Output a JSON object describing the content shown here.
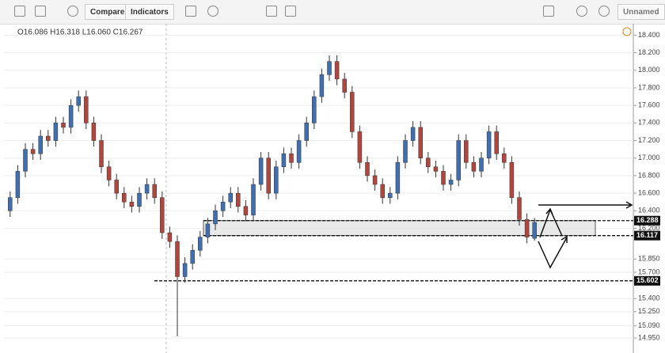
{
  "toolbar": {
    "compare": "Compare",
    "indicators": "Indicators",
    "layout_name": "Unnamed"
  },
  "chart_data": {
    "type": "candlestick",
    "ohlc_header": "O16.086 H16.318 L16.060 C16.267",
    "up_color": "#3f6fb0",
    "down_color": "#b0463e",
    "open": [
      16.4,
      16.55,
      16.85,
      17.1,
      17.05,
      17.25,
      17.2,
      17.4,
      17.35,
      17.6,
      17.7,
      17.4,
      17.2,
      16.9,
      16.75,
      16.6,
      16.5,
      16.45,
      16.6,
      16.7,
      16.55,
      16.15,
      16.05,
      15.65,
      15.8,
      15.95,
      16.1,
      16.25,
      16.4,
      16.5,
      16.6,
      16.45,
      16.35,
      16.7,
      17.0,
      16.6,
      16.9,
      17.05,
      16.95,
      17.2,
      17.4,
      17.7,
      17.95,
      18.1,
      17.9,
      17.75,
      17.3,
      16.95,
      16.8,
      16.7,
      16.55,
      16.6,
      16.95,
      17.2,
      17.35,
      17.0,
      16.9,
      16.85,
      16.7,
      16.75,
      17.2,
      16.95,
      16.85,
      17.0,
      17.3,
      17.05,
      16.95,
      16.55,
      16.3,
      16.086
    ],
    "high": [
      16.62,
      16.92,
      17.17,
      17.17,
      17.32,
      17.32,
      17.47,
      17.47,
      17.67,
      17.77,
      17.77,
      17.47,
      17.27,
      16.97,
      16.82,
      16.67,
      16.57,
      16.67,
      16.77,
      16.77,
      16.62,
      16.22,
      16.12,
      15.87,
      16.02,
      16.17,
      16.32,
      16.47,
      16.57,
      16.67,
      16.67,
      16.52,
      16.77,
      17.07,
      17.07,
      16.97,
      17.12,
      17.12,
      17.27,
      17.47,
      17.77,
      18.02,
      18.17,
      18.17,
      17.97,
      17.82,
      17.37,
      17.02,
      16.87,
      16.77,
      16.67,
      17.02,
      17.27,
      17.42,
      17.42,
      17.07,
      16.97,
      16.92,
      16.82,
      17.27,
      17.27,
      17.02,
      17.07,
      17.37,
      17.37,
      17.12,
      17.02,
      16.62,
      16.37,
      16.318
    ],
    "low": [
      16.33,
      16.48,
      16.78,
      16.98,
      16.98,
      17.13,
      17.13,
      17.28,
      17.28,
      17.53,
      17.33,
      17.13,
      16.83,
      16.68,
      16.53,
      16.43,
      16.38,
      16.38,
      16.53,
      16.48,
      16.08,
      15.98,
      14.97,
      15.58,
      15.73,
      15.88,
      16.03,
      16.18,
      16.33,
      16.43,
      16.38,
      16.28,
      16.28,
      16.63,
      16.53,
      16.53,
      16.83,
      16.88,
      16.88,
      17.13,
      17.33,
      17.63,
      17.88,
      17.83,
      17.68,
      17.23,
      16.88,
      16.73,
      16.63,
      16.48,
      16.48,
      16.53,
      16.88,
      17.13,
      16.93,
      16.83,
      16.78,
      16.63,
      16.63,
      16.68,
      16.88,
      16.78,
      16.78,
      16.93,
      16.98,
      16.88,
      16.48,
      16.23,
      16.03,
      16.06
    ],
    "close": [
      16.55,
      16.85,
      17.1,
      17.05,
      17.25,
      17.2,
      17.4,
      17.35,
      17.6,
      17.7,
      17.4,
      17.2,
      16.9,
      16.75,
      16.6,
      16.5,
      16.45,
      16.6,
      16.7,
      16.55,
      16.15,
      16.05,
      15.65,
      15.8,
      15.95,
      16.1,
      16.25,
      16.4,
      16.5,
      16.6,
      16.45,
      16.35,
      16.7,
      17.0,
      16.6,
      16.9,
      17.05,
      16.95,
      17.2,
      17.4,
      17.7,
      17.95,
      18.1,
      17.9,
      17.75,
      17.3,
      16.95,
      16.8,
      16.7,
      16.55,
      16.6,
      16.95,
      17.2,
      17.35,
      17.0,
      16.9,
      16.85,
      16.7,
      16.75,
      17.2,
      16.95,
      16.85,
      17.0,
      17.3,
      17.05,
      16.95,
      16.55,
      16.3,
      16.1,
      16.267
    ],
    "ylim": [
      14.78,
      18.53
    ],
    "yticks": [
      {
        "value": 18.4,
        "label": "18.400"
      },
      {
        "value": 18.2,
        "label": "18.200"
      },
      {
        "value": 18.0,
        "label": "18.000"
      },
      {
        "value": 17.8,
        "label": "17.800"
      },
      {
        "value": 17.6,
        "label": "17.600"
      },
      {
        "value": 17.4,
        "label": "17.400"
      },
      {
        "value": 17.2,
        "label": "17.200"
      },
      {
        "value": 17.0,
        "label": "17.000"
      },
      {
        "value": 16.8,
        "label": "16.800"
      },
      {
        "value": 16.6,
        "label": "16.600"
      },
      {
        "value": 16.4,
        "label": "16.400"
      },
      {
        "value": 16.2,
        "label": "16.200"
      },
      {
        "value": 15.85,
        "label": "15.850"
      },
      {
        "value": 15.7,
        "label": "15.700"
      },
      {
        "value": 15.4,
        "label": "15.400"
      },
      {
        "value": 15.25,
        "label": "15.250"
      },
      {
        "value": 15.09,
        "label": "15.090"
      },
      {
        "value": 14.95,
        "label": "14.950"
      }
    ],
    "levels": [
      {
        "value": 16.288,
        "label": "16.288"
      },
      {
        "value": 16.117,
        "label": "16.117"
      },
      {
        "value": 15.602,
        "label": "15.602"
      }
    ]
  }
}
